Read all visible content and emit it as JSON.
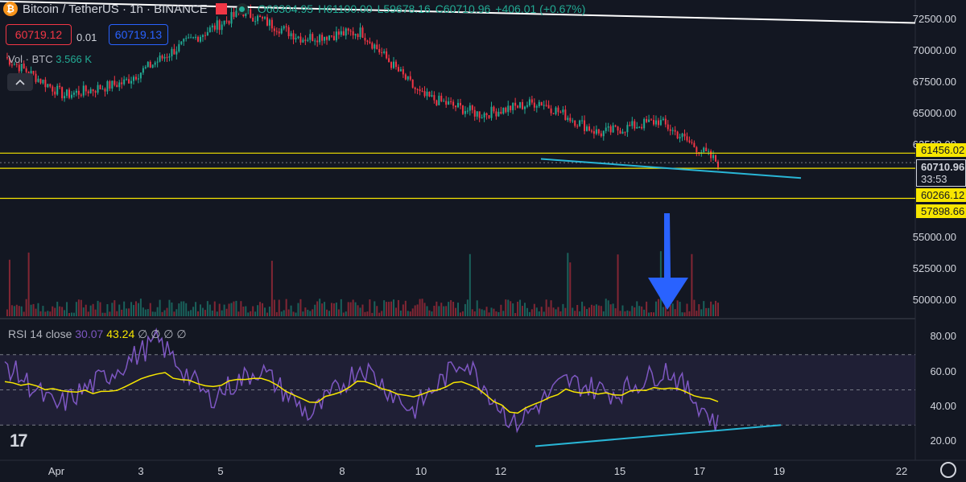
{
  "header": {
    "symbol": "Bitcoin / TetherUS · 1h · BINANCE",
    "open": "O60304.95",
    "high": "H61100.00",
    "low": "L59678.16",
    "close": "C60710.96",
    "change": "+406.01 (+0.67%)"
  },
  "trade": {
    "sell_price": "60719.12",
    "spread": "0.01",
    "buy_price": "60719.13"
  },
  "volume": {
    "label": "Vol · BTC",
    "value": "3.566 K"
  },
  "rsi": {
    "label": "RSI 14 close",
    "value": "30.07",
    "ma_value": "43.24",
    "extra": "∅ ∅ ∅ ∅"
  },
  "price_axis": [
    "72500.00",
    "70000.00",
    "67500.00",
    "65000.00",
    "62500.00",
    "55000.00",
    "52500.00",
    "50000.00"
  ],
  "rsi_axis": [
    "80.00",
    "60.00",
    "40.00",
    "20.00"
  ],
  "level_tags": [
    "61456.02",
    "60266.12",
    "57898.66"
  ],
  "last_price": {
    "value": "60710.96",
    "countdown": "33:53"
  },
  "time_axis": [
    "Apr",
    "3",
    "5",
    "8",
    "10",
    "12",
    "15",
    "17",
    "19",
    "22"
  ],
  "logo": "17",
  "colors": {
    "up": "#22ab94",
    "down": "#f23645",
    "level": "#f7e600",
    "trend": "#29b6d6",
    "arrow": "#2962ff",
    "rsi": "#7e57c2",
    "rsi_ma": "#f7e600"
  },
  "chart_data": {
    "type": "candlestick",
    "symbol": "BTCUSDT",
    "timeframe": "1h",
    "x": [
      "Apr",
      "3",
      "5",
      "8",
      "10",
      "12",
      "15",
      "17"
    ],
    "close_trace": [
      69000,
      66000,
      67000,
      70000,
      72600,
      70500,
      71000,
      66000,
      64500,
      65500,
      63000,
      64000,
      60710.96
    ],
    "levels": [
      61456.02,
      60266.12,
      57898.66
    ],
    "ylim": [
      48500,
      73500
    ],
    "rsi": [
      65,
      40,
      58,
      78,
      45,
      62,
      35,
      64,
      38,
      68,
      30,
      55,
      48,
      62,
      30.07
    ],
    "rsi_ma": [
      55,
      50,
      48,
      60,
      52,
      58,
      42,
      55,
      45,
      56,
      36,
      50,
      47,
      52,
      43.24
    ],
    "rsi_ylim": [
      10,
      90
    ]
  }
}
